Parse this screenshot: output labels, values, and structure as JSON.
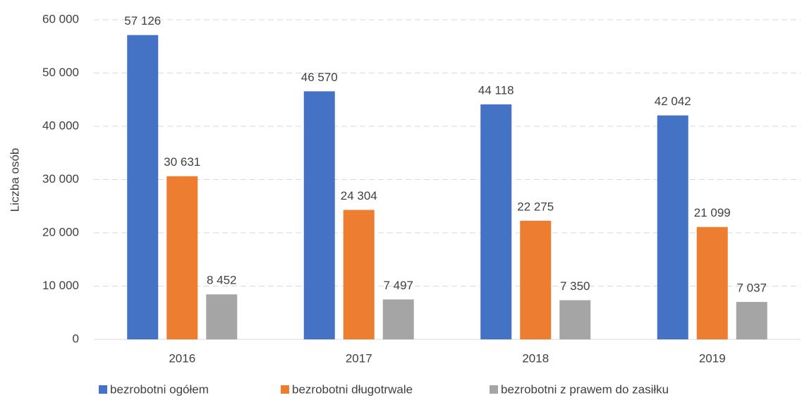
{
  "chart_data": {
    "type": "bar",
    "y_label": "Liczba osób",
    "categories": [
      "2016",
      "2017",
      "2018",
      "2019"
    ],
    "series": [
      {
        "name": "bezrobotni ogółem",
        "color": "#4472c4",
        "values": [
          57126,
          46570,
          44118,
          42042
        ],
        "value_labels": [
          "57 126",
          "46 570",
          "44 118",
          "42 042"
        ]
      },
      {
        "name": "bezrobotni długotrwale",
        "color": "#ed7d31",
        "values": [
          30631,
          24304,
          22275,
          21099
        ],
        "value_labels": [
          "30 631",
          "24 304",
          "22 275",
          "21 099"
        ]
      },
      {
        "name": "bezrobotni z prawem do zasiłku",
        "color": "#a5a5a5",
        "values": [
          8452,
          7497,
          7350,
          7037
        ],
        "value_labels": [
          "8 452",
          "7 497",
          "7 350",
          "7 037"
        ]
      }
    ],
    "ylim": [
      0,
      60000
    ],
    "yticks": [
      0,
      {
        "value": 10000,
        "label": "10 000"
      },
      {
        "value": 20000,
        "label": "20 000"
      },
      {
        "value": 30000,
        "label": "30 000"
      },
      {
        "value": 40000,
        "label": "40 000"
      },
      {
        "value": 50000,
        "label": "50 000"
      },
      {
        "value": 60000,
        "label": "60 000"
      }
    ],
    "grid": true,
    "legend": "bottom"
  }
}
